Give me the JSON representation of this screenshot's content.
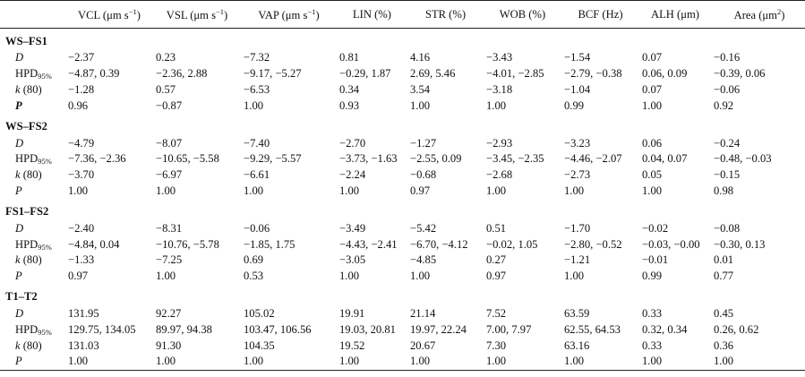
{
  "columns": [
    {
      "main": "VCL (μm s",
      "sup": "−1",
      "tail": ")"
    },
    {
      "main": "VSL (μm s",
      "sup": "−1",
      "tail": ")"
    },
    {
      "main": "VAP (μm s",
      "sup": "−1",
      "tail": ")"
    },
    {
      "main": "LIN (%)",
      "sup": "",
      "tail": ""
    },
    {
      "main": "STR (%)",
      "sup": "",
      "tail": ""
    },
    {
      "main": "WOB (%)",
      "sup": "",
      "tail": ""
    },
    {
      "main": "BCF (Hz)",
      "sup": "",
      "tail": ""
    },
    {
      "main": "ALH (μm)",
      "sup": "",
      "tail": ""
    },
    {
      "main": "Area (μm",
      "sup": "2",
      "tail": ")"
    }
  ],
  "row_labels": {
    "d": "D",
    "hpd_main": "HPD",
    "hpd_sub": "95%",
    "k": "k",
    "k_paren": " (80)",
    "p": "P"
  },
  "groups": [
    {
      "title": "WS–FS1",
      "p_bold": true,
      "D": [
        "−2.37",
        "0.23",
        "−7.32",
        "0.81",
        "4.16",
        "−3.43",
        "−1.54",
        "0.07",
        "−0.16"
      ],
      "HPD": [
        "−4.87, 0.39",
        "−2.36, 2.88",
        "−9.17, −5.27",
        "−0.29, 1.87",
        "2.69, 5.46",
        "−4.01, −2.85",
        "−2.79, −0.38",
        "0.06, 0.09",
        "−0.39, 0.06"
      ],
      "k": [
        "−1.28",
        "0.57",
        "−6.53",
        "0.34",
        "3.54",
        "−3.18",
        "−1.04",
        "0.07",
        "−0.06"
      ],
      "P": [
        "0.96",
        "−0.87",
        "1.00",
        "0.93",
        "1.00",
        "1.00",
        "0.99",
        "1.00",
        "0.92"
      ]
    },
    {
      "title": "WS–FS2",
      "p_bold": false,
      "D": [
        "−4.79",
        "−8.07",
        "−7.40",
        "−2.70",
        "−1.27",
        "−2.93",
        "−3.23",
        "0.06",
        "−0.24"
      ],
      "HPD": [
        "−7.36, −2.36",
        "−10.65, −5.58",
        "−9.29, −5.57",
        "−3.73, −1.63",
        "−2.55, 0.09",
        "−3.45, −2.35",
        "−4.46, −2.07",
        "0.04, 0.07",
        "−0.48, −0.03"
      ],
      "k": [
        "−3.70",
        "−6.97",
        "−6.61",
        "−2.24",
        "−0.68",
        "−2.68",
        "−2.73",
        "0.05",
        "−0.15"
      ],
      "P": [
        "1.00",
        "1.00",
        "1.00",
        "1.00",
        "0.97",
        "1.00",
        "1.00",
        "1.00",
        "0.98"
      ]
    },
    {
      "title": "FS1–FS2",
      "p_bold": false,
      "D": [
        "−2.40",
        "−8.31",
        "−0.06",
        "−3.49",
        "−5.42",
        "0.51",
        "−1.70",
        "−0.02",
        "−0.08"
      ],
      "HPD": [
        "−4.84, 0.04",
        "−10.76, −5.78",
        "−1.85, 1.75",
        "−4.43, −2.41",
        "−6.70, −4.12",
        "−0.02, 1.05",
        "−2.80, −0.52",
        "−0.03, −0.00",
        "−0.30, 0.13"
      ],
      "k": [
        "−1.33",
        "−7.25",
        "0.69",
        "−3.05",
        "−4.85",
        "0.27",
        "−1.21",
        "−0.01",
        "0.01"
      ],
      "P": [
        "0.97",
        "1.00",
        "0.53",
        "1.00",
        "1.00",
        "0.97",
        "1.00",
        "0.99",
        "0.77"
      ]
    },
    {
      "title": "T1–T2",
      "p_bold": false,
      "D": [
        "131.95",
        "92.27",
        "105.02",
        "19.91",
        "21.14",
        "7.52",
        "63.59",
        "0.33",
        "0.45"
      ],
      "HPD": [
        "129.75, 134.05",
        "89.97, 94.38",
        "103.47, 106.56",
        "19.03, 20.81",
        "19.97, 22.24",
        "7.00, 7.97",
        "62.55, 64.53",
        "0.32, 0.34",
        "0.26, 0.62"
      ],
      "k": [
        "131.03",
        "91.30",
        "104.35",
        "19.52",
        "20.67",
        "7.30",
        "63.16",
        "0.33",
        "0.36"
      ],
      "P": [
        "1.00",
        "1.00",
        "1.00",
        "1.00",
        "1.00",
        "1.00",
        "1.00",
        "1.00",
        "1.00"
      ]
    }
  ]
}
